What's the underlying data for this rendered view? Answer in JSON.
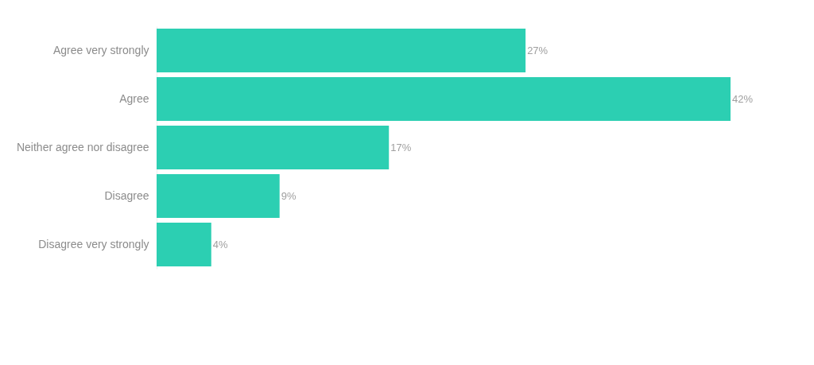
{
  "chart_data": {
    "type": "bar",
    "orientation": "horizontal",
    "categories": [
      "Agree very strongly",
      "Agree",
      "Neither agree nor disagree",
      "Disagree",
      "Disagree very strongly"
    ],
    "values": [
      27,
      42,
      17,
      9,
      4
    ],
    "value_labels": [
      "27%",
      "42%",
      "17%",
      "9%",
      "4%"
    ],
    "color": "#2ccfb2",
    "grid": false
  }
}
